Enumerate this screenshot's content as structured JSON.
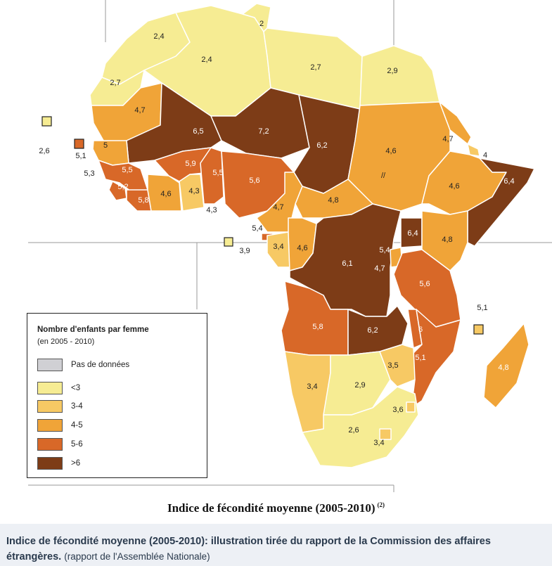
{
  "colors": {
    "lt3": "#f6ec93",
    "c34": "#f7c964",
    "c45": "#f0a438",
    "c56": "#d86828",
    "gt6": "#7d3c17",
    "no_data": "#d0d0d4",
    "caption_bg": "#edf0f5"
  },
  "map": {
    "title": "Indice de fécondité moyenne (2005-2010)",
    "title_note": "(2)",
    "labels": {
      "morocco": "2,4",
      "tunisia": "2",
      "algeria": "2,4",
      "libya": "2,7",
      "egypt": "2,9",
      "western_sahara": "2,7",
      "mauritania": "4,7",
      "mali": "6,5",
      "niger": "7,2",
      "chad": "6,2",
      "sudan": "4,6",
      "eritrea": "4,7",
      "djibouti": "4",
      "somalia": "6,4",
      "ethiopia": "4,6",
      "canaries": "2,6",
      "cape_verde_value": "5,1",
      "senegal_area": "5,3",
      "senegal": "5",
      "guinea": "5,5",
      "sierra_leone": "5,2",
      "liberia": "5,8",
      "burkina_faso": "5,9",
      "benin_togo": "5,5",
      "ivory_coast": "4,6",
      "ghana": "4,3",
      "gulf": "4,3",
      "nigeria": "5,6",
      "cameroon": "4,7",
      "car": "4,8",
      "sao_tome": "5,4",
      "equatorial_guinea": "3,9",
      "gabon": "3,4",
      "congo": "4,6",
      "drc": "6,1",
      "uganda": "6,4",
      "rwanda_burundi": "5,4",
      "rwanda_burundi_2": "4,7",
      "kenya": "4,8",
      "tanzania": "5,6",
      "comoros": "5,1",
      "angola": "5,8",
      "zambia": "6,2",
      "malawi": "6",
      "mozambique": "5,1",
      "madagascar": "4,8",
      "zimbabwe": "3,5",
      "namibia": "3,4",
      "botswana": "2,9",
      "swaziland": "3,6",
      "south_africa": "2,6",
      "lesotho": "3,4",
      "sudan_border": "//"
    }
  },
  "legend": {
    "title": "Nombre d'enfants par femme",
    "subtitle": "(en 2005 - 2010)",
    "items": [
      {
        "label": "Pas de données",
        "color": "#d0d0d4"
      },
      {
        "label": "<3",
        "color": "#f6ec93"
      },
      {
        "label": "3-4",
        "color": "#f7c964"
      },
      {
        "label": "4-5",
        "color": "#f0a438"
      },
      {
        "label": "5-6",
        "color": "#d86828"
      },
      {
        "label": ">6",
        "color": "#7d3c17"
      }
    ]
  },
  "caption": {
    "text": "Indice de fécondité moyenne (2005-2010): illustration tirée du rapport de la Commission des affaires étrangères.",
    "source": "(rapport de l'Assemblée Nationale)"
  }
}
